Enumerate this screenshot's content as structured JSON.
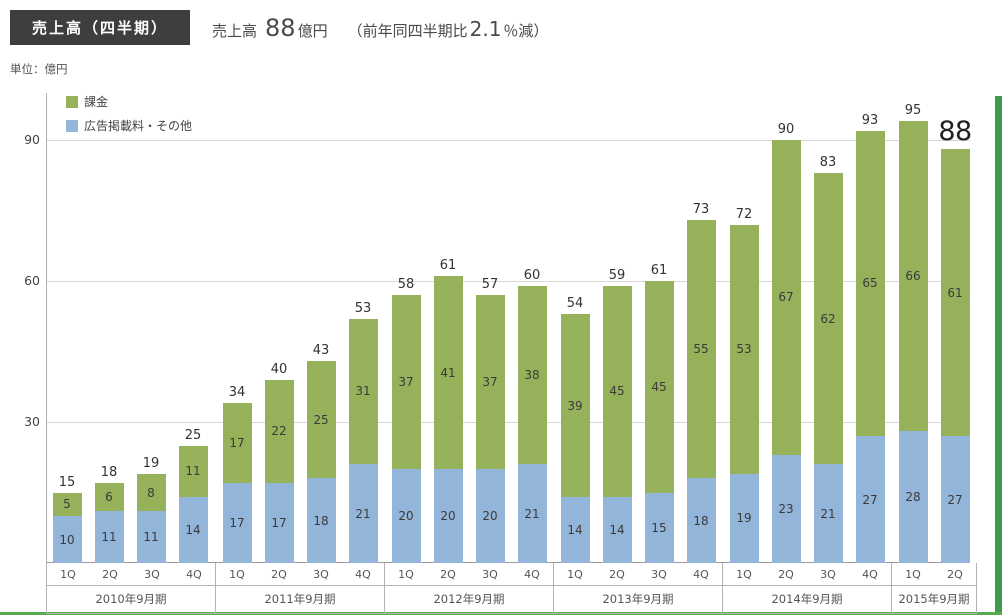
{
  "header": {
    "badge": "売上高（四半期）",
    "summary": {
      "prefix": "売上高",
      "value": "88",
      "unit": "億円",
      "note_prefix": "（前年同四半期比",
      "note_value": "2.1",
      "note_suffix": "％減）"
    }
  },
  "unit_label": "単位：億円",
  "legend": [
    {
      "label": "課金",
      "color": "#95b25a"
    },
    {
      "label": "広告掲載料・その他",
      "color": "#93b5da"
    }
  ],
  "chart_data": {
    "type": "bar",
    "stacked": true,
    "title": "売上高（四半期）",
    "unit": "億円",
    "ylim": [
      0,
      100
    ],
    "yticks": [
      30,
      60,
      90
    ],
    "grid": true,
    "legend_position": "top-left",
    "series_names": [
      "広告掲載料・その他",
      "課金"
    ],
    "colors": {
      "課金": "#95b25a",
      "広告掲載料・その他": "#93b5da"
    },
    "highlight_last_total": true,
    "groups": [
      {
        "year": "2010年9月期",
        "quarters": [
          "1Q",
          "2Q",
          "3Q",
          "4Q"
        ],
        "ad_other": [
          10,
          11,
          11,
          14
        ],
        "kakin": [
          5,
          6,
          8,
          11
        ],
        "totals": [
          15,
          18,
          19,
          25
        ]
      },
      {
        "year": "2011年9月期",
        "quarters": [
          "1Q",
          "2Q",
          "3Q",
          "4Q"
        ],
        "ad_other": [
          17,
          17,
          18,
          21
        ],
        "kakin": [
          17,
          22,
          25,
          31
        ],
        "totals": [
          34,
          40,
          43,
          53
        ]
      },
      {
        "year": "2012年9月期",
        "quarters": [
          "1Q",
          "2Q",
          "3Q",
          "4Q"
        ],
        "ad_other": [
          20,
          20,
          20,
          21
        ],
        "kakin": [
          37,
          41,
          37,
          38
        ],
        "totals": [
          58,
          61,
          57,
          60
        ]
      },
      {
        "year": "2013年9月期",
        "quarters": [
          "1Q",
          "2Q",
          "3Q",
          "4Q"
        ],
        "ad_other": [
          14,
          14,
          15,
          18
        ],
        "kakin": [
          39,
          45,
          45,
          55
        ],
        "totals": [
          54,
          59,
          61,
          73
        ]
      },
      {
        "year": "2014年9月期",
        "quarters": [
          "1Q",
          "2Q",
          "3Q",
          "4Q"
        ],
        "ad_other": [
          19,
          23,
          21,
          27
        ],
        "kakin": [
          53,
          67,
          62,
          65
        ],
        "totals": [
          72,
          90,
          83,
          93
        ]
      },
      {
        "year": "2015年9月期",
        "quarters": [
          "1Q",
          "2Q"
        ],
        "ad_other": [
          28,
          27
        ],
        "kakin": [
          66,
          61
        ],
        "totals": [
          95,
          88
        ]
      }
    ]
  }
}
